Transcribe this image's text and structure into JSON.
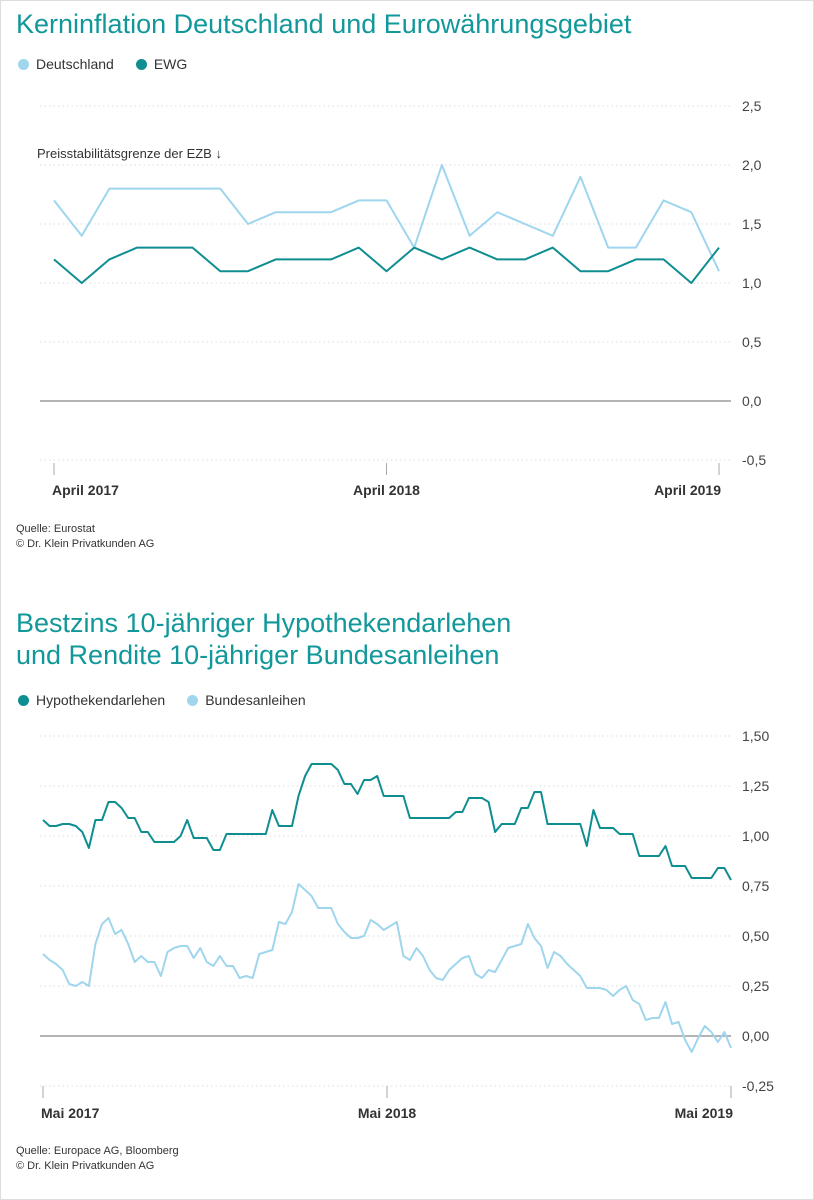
{
  "colors": {
    "title": "#12989a",
    "dark_teal": "#0f8e91",
    "light_blue": "#9fd6ee",
    "zero_line": "#888888",
    "grid": "#dddddd"
  },
  "chart_data": [
    {
      "type": "line",
      "title": "Kerninflation Deutschland und Eurowährungsgebiet",
      "annotation": "Preisstabilitätsgrenze der EZB ↓",
      "x_tick_labels": [
        "April 2017",
        "April 2018",
        "April 2019"
      ],
      "x": [
        "2017-04",
        "2017-05",
        "2017-06",
        "2017-07",
        "2017-08",
        "2017-09",
        "2017-10",
        "2017-11",
        "2017-12",
        "2018-01",
        "2018-02",
        "2018-03",
        "2018-04",
        "2018-05",
        "2018-06",
        "2018-07",
        "2018-08",
        "2018-09",
        "2018-10",
        "2018-11",
        "2018-12",
        "2019-01",
        "2019-02",
        "2019-03",
        "2019-04"
      ],
      "ylim": [
        -0.5,
        2.5
      ],
      "y_ticks": [
        {
          "value": 2.5,
          "label": "2,5"
        },
        {
          "value": 2.0,
          "label": "2,0"
        },
        {
          "value": 1.5,
          "label": "1,5"
        },
        {
          "value": 1.0,
          "label": "1,0"
        },
        {
          "value": 0.5,
          "label": "0,5"
        },
        {
          "value": 0.0,
          "label": "0,0"
        },
        {
          "value": -0.5,
          "label": "-0,5"
        }
      ],
      "grid": true,
      "legend_position": "top-left",
      "series": [
        {
          "name": "Deutschland",
          "color": "#9fd6ee",
          "values": [
            1.7,
            1.4,
            1.8,
            1.8,
            1.8,
            1.8,
            1.8,
            1.5,
            1.6,
            1.6,
            1.6,
            1.7,
            1.7,
            1.3,
            2.0,
            1.4,
            1.6,
            1.5,
            1.4,
            1.9,
            1.3,
            1.3,
            1.7,
            1.6,
            1.1
          ]
        },
        {
          "name": "EWG",
          "color": "#0f8e91",
          "values": [
            1.2,
            1.0,
            1.2,
            1.3,
            1.3,
            1.3,
            1.1,
            1.1,
            1.2,
            1.2,
            1.2,
            1.3,
            1.1,
            1.3,
            1.2,
            1.3,
            1.2,
            1.2,
            1.3,
            1.1,
            1.1,
            1.2,
            1.2,
            1.0,
            1.3
          ]
        }
      ],
      "source": [
        "Quelle: Eurostat",
        "© Dr. Klein Privatkunden AG"
      ]
    },
    {
      "type": "line",
      "title": [
        "Bestzins 10-jähriger Hypothekendarlehen",
        "und Rendite 10-jähriger Bundesanleihen"
      ],
      "x_tick_labels": [
        "Mai 2017",
        "Mai 2018",
        "Mai 2019"
      ],
      "x_frequency": "weekly, Mai 2017 – Mai 2019",
      "ylim": [
        -0.25,
        1.5
      ],
      "y_ticks": [
        {
          "value": 1.5,
          "label": "1,50"
        },
        {
          "value": 1.25,
          "label": "1,25"
        },
        {
          "value": 1.0,
          "label": "1,00"
        },
        {
          "value": 0.75,
          "label": "0,75"
        },
        {
          "value": 0.5,
          "label": "0,50"
        },
        {
          "value": 0.25,
          "label": "0,25"
        },
        {
          "value": 0.0,
          "label": "0,00"
        },
        {
          "value": -0.25,
          "label": "-0,25"
        }
      ],
      "grid": true,
      "legend_position": "top-left",
      "series": [
        {
          "name": "Hypothekendarlehen",
          "color": "#0f8e91",
          "values": [
            1.08,
            1.05,
            1.05,
            1.06,
            1.06,
            1.05,
            1.02,
            0.94,
            1.08,
            1.08,
            1.17,
            1.17,
            1.14,
            1.09,
            1.09,
            1.02,
            1.02,
            0.97,
            0.97,
            0.97,
            0.97,
            1.0,
            1.08,
            0.99,
            0.99,
            0.99,
            0.93,
            0.93,
            1.01,
            1.01,
            1.01,
            1.01,
            1.01,
            1.01,
            1.01,
            1.13,
            1.05,
            1.05,
            1.05,
            1.2,
            1.3,
            1.36,
            1.36,
            1.36,
            1.36,
            1.33,
            1.26,
            1.26,
            1.21,
            1.28,
            1.28,
            1.3,
            1.2,
            1.2,
            1.2,
            1.2,
            1.09,
            1.09,
            1.09,
            1.09,
            1.09,
            1.09,
            1.09,
            1.12,
            1.12,
            1.19,
            1.19,
            1.19,
            1.17,
            1.02,
            1.06,
            1.06,
            1.06,
            1.14,
            1.14,
            1.22,
            1.22,
            1.06,
            1.06,
            1.06,
            1.06,
            1.06,
            1.06,
            0.95,
            1.13,
            1.04,
            1.04,
            1.04,
            1.01,
            1.01,
            1.01,
            0.9,
            0.9,
            0.9,
            0.9,
            0.95,
            0.85,
            0.85,
            0.85,
            0.79,
            0.79,
            0.79,
            0.79,
            0.84,
            0.84,
            0.78
          ]
        },
        {
          "name": "Bundesanleihen",
          "color": "#9fd6ee",
          "values": [
            0.41,
            0.38,
            0.36,
            0.33,
            0.26,
            0.25,
            0.27,
            0.25,
            0.46,
            0.56,
            0.59,
            0.51,
            0.53,
            0.46,
            0.37,
            0.4,
            0.37,
            0.37,
            0.3,
            0.42,
            0.44,
            0.45,
            0.45,
            0.39,
            0.44,
            0.37,
            0.35,
            0.4,
            0.35,
            0.35,
            0.29,
            0.3,
            0.29,
            0.41,
            0.42,
            0.43,
            0.57,
            0.56,
            0.62,
            0.76,
            0.73,
            0.7,
            0.64,
            0.64,
            0.64,
            0.56,
            0.52,
            0.49,
            0.49,
            0.5,
            0.58,
            0.56,
            0.53,
            0.55,
            0.57,
            0.4,
            0.38,
            0.44,
            0.4,
            0.33,
            0.29,
            0.28,
            0.33,
            0.36,
            0.39,
            0.4,
            0.31,
            0.29,
            0.33,
            0.32,
            0.38,
            0.44,
            0.45,
            0.46,
            0.56,
            0.49,
            0.45,
            0.34,
            0.42,
            0.4,
            0.36,
            0.33,
            0.3,
            0.24,
            0.24,
            0.24,
            0.23,
            0.2,
            0.23,
            0.25,
            0.18,
            0.16,
            0.08,
            0.09,
            0.09,
            0.17,
            0.06,
            0.07,
            -0.02,
            -0.08,
            -0.01,
            0.05,
            0.02,
            -0.03,
            0.02,
            -0.06
          ]
        }
      ],
      "source": [
        "Quelle: Europace AG, Bloomberg",
        "© Dr. Klein Privatkunden AG"
      ]
    }
  ]
}
